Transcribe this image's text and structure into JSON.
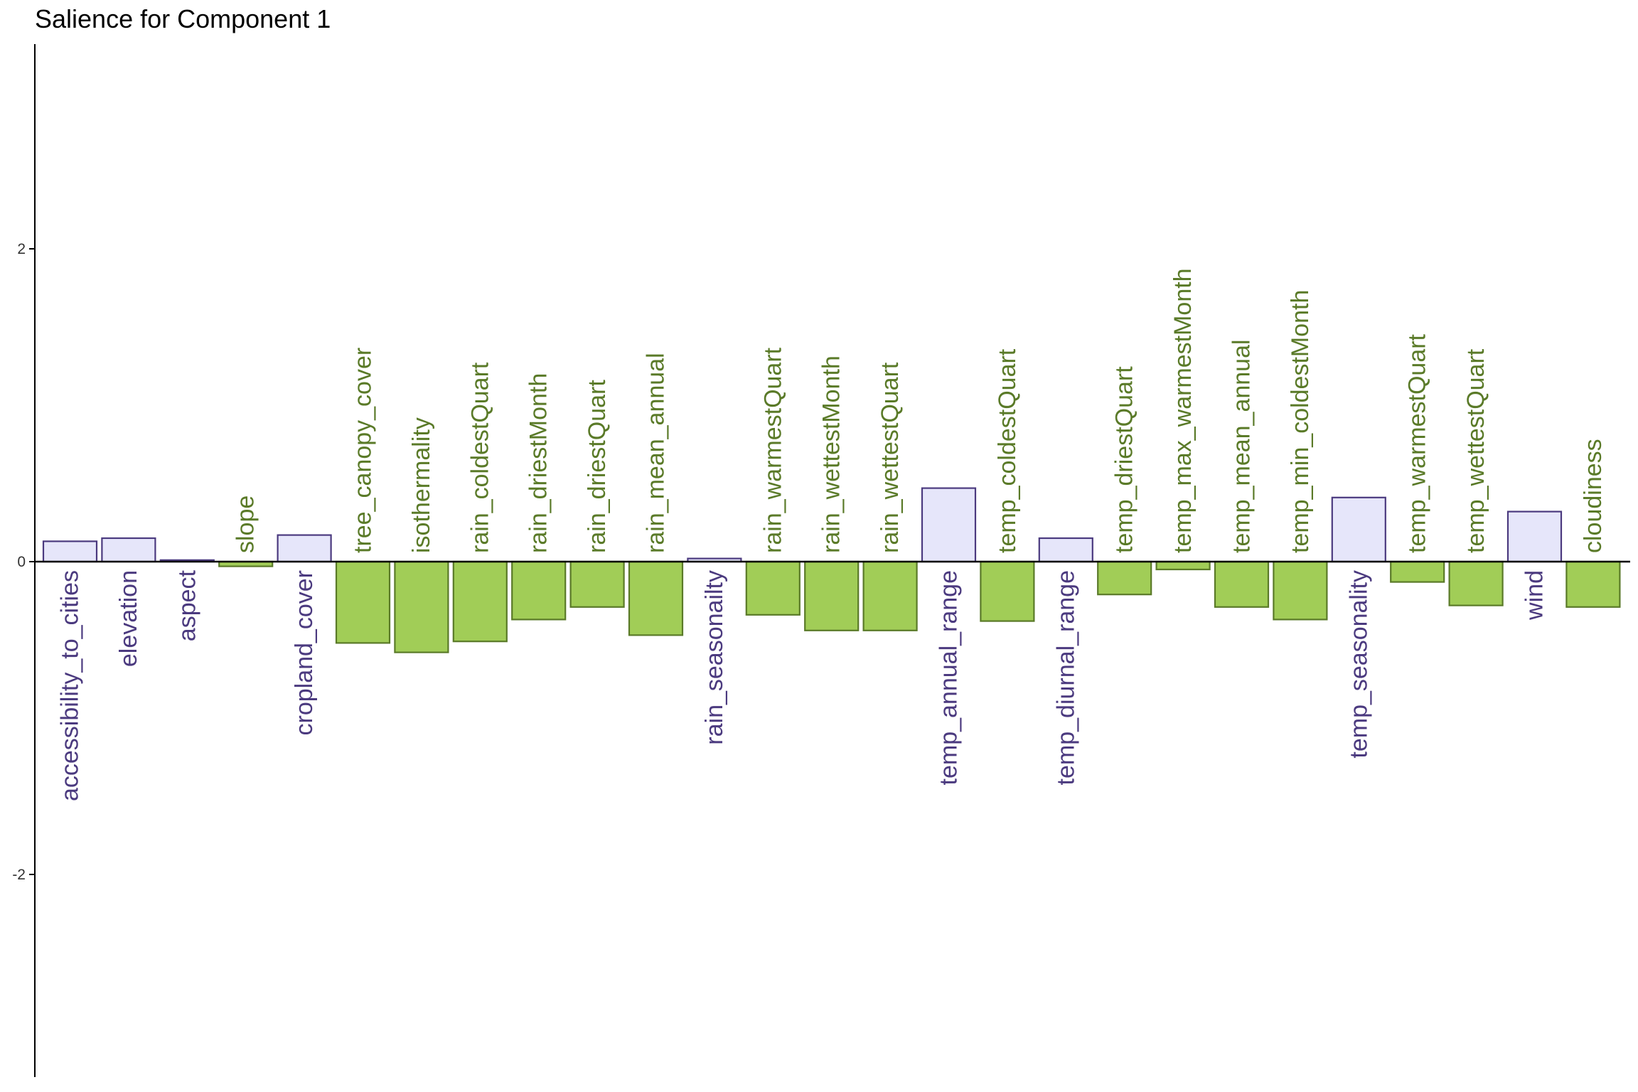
{
  "chart_data": {
    "type": "bar",
    "title": "Salience for Component 1",
    "xlabel": "",
    "ylabel": "",
    "ylim": [
      -3.3,
      3.3
    ],
    "y_ticks": [
      {
        "value": 2,
        "label": "2"
      },
      {
        "value": 0,
        "label": "0"
      },
      {
        "value": -2,
        "label": "-2"
      }
    ],
    "grid": false,
    "legend": "none",
    "colors": {
      "positive_fill": "#e6e6fa",
      "positive_stroke": "#4b3a7f",
      "negative_fill": "#a1cd57",
      "negative_stroke": "#5a7a28",
      "positive_label": "#4b3a7f",
      "negative_label": "#5a7a28",
      "axis": "#000000"
    },
    "categories": [
      "accessibility_to_cities",
      "elevation",
      "aspect",
      "slope",
      "cropland_cover",
      "tree_canopy_cover",
      "isothermality",
      "rain_coldestQuart",
      "rain_driestMonth",
      "rain_driestQuart",
      "rain_mean_annual",
      "rain_seasonailty",
      "rain_warmestQuart",
      "rain_wettestMonth",
      "rain_wettestQuart",
      "temp_annual_range",
      "temp_coldestQuart",
      "temp_diurnal_range",
      "temp_driestQuart",
      "temp_max_warmestMonth",
      "temp_mean_annual",
      "temp_min_coldestMonth",
      "temp_seasonality",
      "temp_warmestQuart",
      "temp_wettestQuart",
      "wind",
      "cloudiness"
    ],
    "values": [
      0.13,
      0.15,
      0.01,
      -0.03,
      0.17,
      -0.52,
      -0.58,
      -0.51,
      -0.37,
      -0.29,
      -0.47,
      0.02,
      -0.34,
      -0.44,
      -0.44,
      0.47,
      -0.38,
      0.15,
      -0.21,
      -0.05,
      -0.29,
      -0.37,
      0.41,
      -0.13,
      -0.28,
      0.32,
      -0.29
    ]
  }
}
